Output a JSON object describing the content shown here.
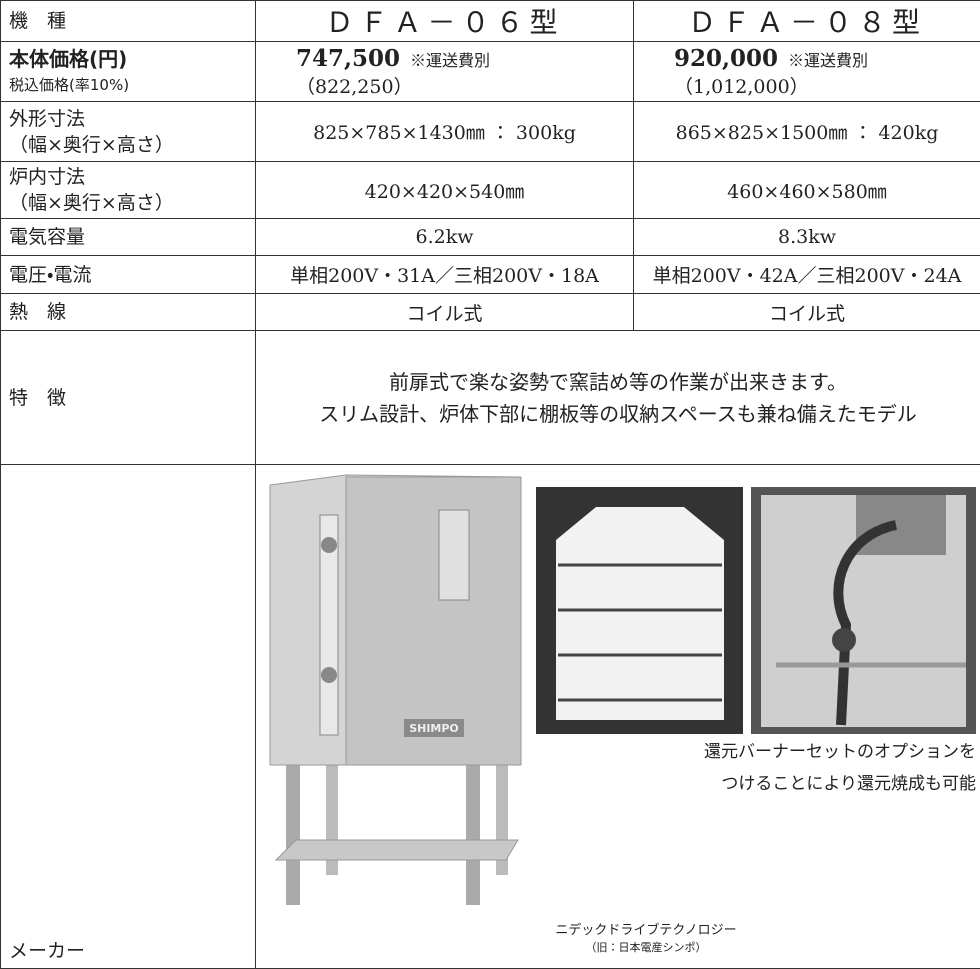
{
  "table": {
    "header": [
      "機　種",
      "ＤＦＡ－０６型",
      "ＤＦＡ－０８型"
    ],
    "price": {
      "label": "本体価格(円)",
      "sublabel": "税込価格(率10%)",
      "models": [
        {
          "price": "747,500",
          "note": "※運送費別",
          "tax_included": "（822,250）"
        },
        {
          "price": "920,000",
          "note": "※運送費別",
          "tax_included": "（1,012,000）"
        }
      ]
    },
    "rows": [
      {
        "label": [
          "外形寸法",
          "（幅×奥行×高さ）"
        ],
        "values": [
          "825×785×1430㎜ ： 300kg",
          "865×825×1500㎜ ： 420kg"
        ]
      },
      {
        "label": [
          "炉内寸法",
          "（幅×奥行×高さ）"
        ],
        "values": [
          "420×420×540㎜",
          "460×460×580㎜"
        ]
      },
      {
        "label": [
          "電気容量"
        ],
        "values": [
          "6.2kw",
          "8.3kw"
        ]
      },
      {
        "label": [
          "電圧・電流"
        ],
        "values": [
          "単相200V・31A／三相200V・18A",
          "単相200V・42A／三相200V・24A"
        ]
      },
      {
        "label": [
          "熱　線"
        ],
        "values": [
          "コイル式",
          "コイル式"
        ]
      }
    ],
    "features": {
      "label": "特　徴",
      "lines": [
        "前扉式で楽な姿勢で窯詰め等の作業が出来きます。",
        "スリム設計、炉体下部に棚板等の収納スペースも兼ね備えたモデル"
      ]
    },
    "maker": {
      "label": "メーカー",
      "name": "ニデックドライブテクノロジー",
      "former": "（旧：日本電産シンポ）"
    },
    "option_caption": [
      "還元バーナーセットのオプションを",
      "つけることにより還元焼成も可能"
    ],
    "logo": "SHIMPO"
  }
}
